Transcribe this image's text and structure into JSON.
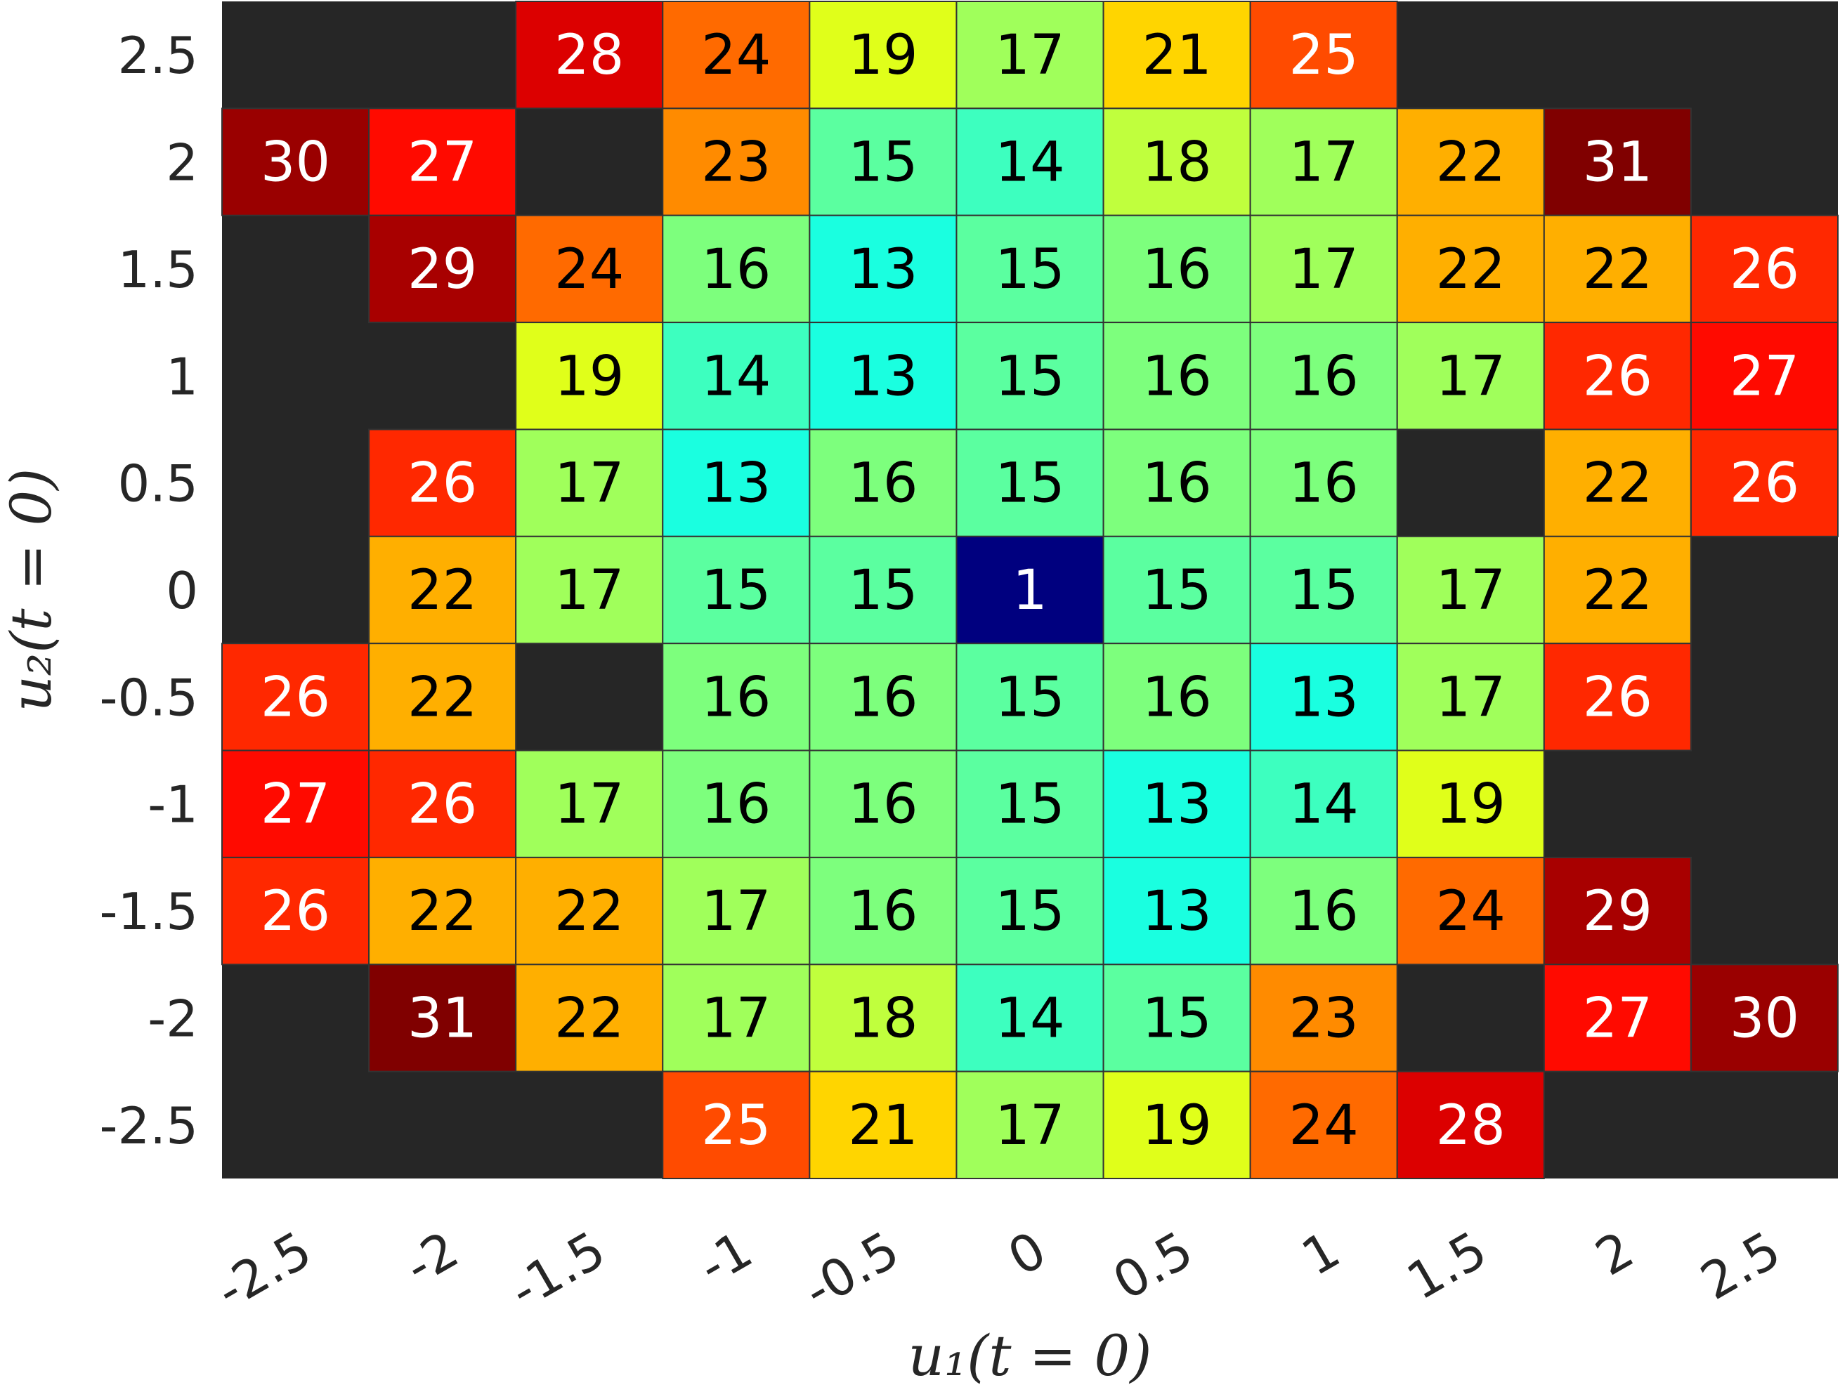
{
  "chart_data": {
    "type": "heatmap",
    "title": "",
    "xlabel": "u₁(t = 0)",
    "ylabel": "u₂(t = 0)",
    "x_ticks": [
      "-2.5",
      "-2",
      "-1.5",
      "-1",
      "-0.5",
      "0",
      "0.5",
      "1",
      "1.5",
      "2",
      "2.5"
    ],
    "y_ticks": [
      "2.5",
      "2",
      "1.5",
      "1",
      "0.5",
      "0",
      "-0.5",
      "-1",
      "-1.5",
      "-2",
      "-2.5"
    ],
    "rows": [
      [
        null,
        null,
        28,
        24,
        19,
        17,
        21,
        25,
        null,
        null,
        null
      ],
      [
        30,
        27,
        null,
        23,
        15,
        14,
        18,
        17,
        22,
        31,
        null
      ],
      [
        null,
        29,
        24,
        16,
        13,
        15,
        16,
        17,
        22,
        22,
        26
      ],
      [
        null,
        null,
        19,
        14,
        13,
        15,
        16,
        16,
        17,
        26,
        27
      ],
      [
        null,
        26,
        17,
        13,
        16,
        15,
        16,
        16,
        null,
        22,
        26
      ],
      [
        null,
        22,
        17,
        15,
        15,
        1,
        15,
        15,
        17,
        22,
        null
      ],
      [
        26,
        22,
        null,
        16,
        16,
        15,
        16,
        13,
        17,
        26,
        null
      ],
      [
        27,
        26,
        17,
        16,
        16,
        15,
        13,
        14,
        19,
        null,
        null
      ],
      [
        26,
        22,
        22,
        17,
        16,
        15,
        13,
        16,
        24,
        29,
        null
      ],
      [
        null,
        31,
        22,
        17,
        18,
        14,
        15,
        23,
        null,
        27,
        30
      ],
      [
        null,
        null,
        null,
        25,
        21,
        17,
        19,
        24,
        28,
        null,
        null
      ]
    ],
    "colormap": {
      "1": "#00007f",
      "13": "#1affe0",
      "14": "#3dffbf",
      "15": "#5bffa0",
      "16": "#7dff7d",
      "17": "#a0ff5b",
      "18": "#c0ff3d",
      "19": "#e0ff1a",
      "21": "#ffd500",
      "22": "#ffaf00",
      "23": "#ff8b00",
      "24": "#ff6a00",
      "25": "#ff4b00",
      "26": "#ff2800",
      "27": "#ff0a00",
      "28": "#dc0000",
      "29": "#a80000",
      "30": "#9a0000",
      "31": "#800000"
    },
    "missing_color": "#262626",
    "grid": true,
    "legend": "none"
  }
}
